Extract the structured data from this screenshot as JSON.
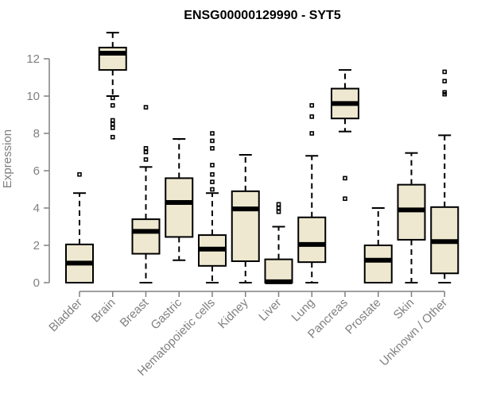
{
  "chart_data": {
    "type": "boxplot",
    "title": "ENSG00000129990 - SYT5",
    "xlabel": "",
    "ylabel": "Expression",
    "ylim": [
      0,
      13
    ],
    "yticks": [
      0,
      2,
      4,
      6,
      8,
      10,
      12
    ],
    "categories": [
      "Bladder",
      "Brain",
      "Breast",
      "Gastric",
      "Hematopoietic cells",
      "Kidney",
      "Liver",
      "Lung",
      "Pancreas",
      "Prostate",
      "Skin",
      "Unknown / Other"
    ],
    "boxes": [
      {
        "min": 0.0,
        "q1": 0.0,
        "median": 1.05,
        "q3": 2.05,
        "max": 4.8,
        "outliers": [
          5.8
        ]
      },
      {
        "min": 10.0,
        "q1": 11.4,
        "median": 12.3,
        "q3": 12.6,
        "max": 13.4,
        "outliers": [
          9.9,
          9.5,
          8.7,
          8.5,
          8.3,
          7.8
        ]
      },
      {
        "min": 0.0,
        "q1": 1.55,
        "median": 2.75,
        "q3": 3.4,
        "max": 6.2,
        "outliers": [
          6.6,
          7.0,
          7.2,
          9.4
        ]
      },
      {
        "min": 1.2,
        "q1": 2.45,
        "median": 4.3,
        "q3": 5.6,
        "max": 7.7,
        "outliers": []
      },
      {
        "min": 0.0,
        "q1": 0.9,
        "median": 1.8,
        "q3": 2.55,
        "max": 4.8,
        "outliers": [
          5.0,
          5.4,
          5.8,
          6.3,
          7.2,
          7.6,
          8.0
        ]
      },
      {
        "min": 0.0,
        "q1": 1.15,
        "median": 3.95,
        "q3": 4.9,
        "max": 6.85,
        "outliers": []
      },
      {
        "min": 0.0,
        "q1": 0.0,
        "median": 0.05,
        "q3": 1.25,
        "max": 3.0,
        "outliers": [
          3.8,
          4.0,
          4.2
        ]
      },
      {
        "min": 0.0,
        "q1": 1.1,
        "median": 2.05,
        "q3": 3.5,
        "max": 6.8,
        "outliers": [
          8.0,
          8.9,
          9.5
        ]
      },
      {
        "min": 8.1,
        "q1": 8.8,
        "median": 9.6,
        "q3": 10.4,
        "max": 11.4,
        "outliers": [
          5.6,
          4.5
        ]
      },
      {
        "min": 0.0,
        "q1": 0.0,
        "median": 1.2,
        "q3": 2.0,
        "max": 4.0,
        "outliers": []
      },
      {
        "min": 0.0,
        "q1": 2.3,
        "median": 3.9,
        "q3": 5.25,
        "max": 6.95,
        "outliers": []
      },
      {
        "min": 0.0,
        "q1": 0.5,
        "median": 2.2,
        "q3": 4.05,
        "max": 7.9,
        "outliers": [
          10.1,
          10.2,
          10.8,
          11.3
        ]
      }
    ]
  }
}
